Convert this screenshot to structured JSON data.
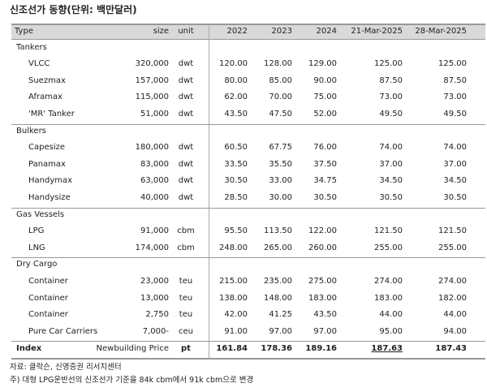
{
  "title": "신조선가 동향(단위: 백만달러)",
  "table": {
    "header": [
      "Type",
      "size",
      "unit",
      "2022",
      "2023",
      "2024",
      "21-Mar-2025",
      "28-Mar-2025"
    ],
    "groups": [
      {
        "name": "Tankers",
        "rows": [
          [
            "VLCC",
            "320,000",
            "dwt",
            "120.00",
            "128.00",
            "129.00",
            "125.00",
            "125.00"
          ],
          [
            "Suezmax",
            "157,000",
            "dwt",
            "80.00",
            "85.00",
            "90.00",
            "87.50",
            "87.50"
          ],
          [
            "Aframax",
            "115,000",
            "dwt",
            "62.00",
            "70.00",
            "75.00",
            "73.00",
            "73.00"
          ],
          [
            "'MR' Tanker",
            "51,000",
            "dwt",
            "43.50",
            "47.50",
            "52.00",
            "49.50",
            "49.50"
          ]
        ]
      },
      {
        "name": "Bulkers",
        "rows": [
          [
            "Capesize",
            "180,000",
            "dwt",
            "60.50",
            "67.75",
            "76.00",
            "74.00",
            "74.00"
          ],
          [
            "Panamax",
            "83,000",
            "dwt",
            "33.50",
            "35.50",
            "37.50",
            "37.00",
            "37.00"
          ],
          [
            "Handymax",
            "63,000",
            "dwt",
            "30.50",
            "33.00",
            "34.75",
            "34.50",
            "34.50"
          ],
          [
            "Handysize",
            "40,000",
            "dwt",
            "28.50",
            "30.00",
            "30.50",
            "30.50",
            "30.50"
          ]
        ]
      },
      {
        "name": "Gas Vessels",
        "rows": [
          [
            "LPG",
            "91,000",
            "cbm",
            "95.50",
            "113.50",
            "122.00",
            "121.50",
            "121.50"
          ],
          [
            "LNG",
            "174,000",
            "cbm",
            "248.00",
            "265.00",
            "260.00",
            "255.00",
            "255.00"
          ]
        ]
      },
      {
        "name": "Dry Cargo",
        "rows": [
          [
            "Container",
            "23,000",
            "teu",
            "215.00",
            "235.00",
            "275.00",
            "274.00",
            "274.00"
          ],
          [
            "Container",
            "13,000",
            "teu",
            "138.00",
            "148.00",
            "183.00",
            "183.00",
            "182.00"
          ],
          [
            "Container",
            "2,750",
            "teu",
            "42.00",
            "41.25",
            "43.50",
            "44.00",
            "44.00"
          ],
          [
            "Pure Car Carriers",
            "7,000-",
            "ceu",
            "91.00",
            "97.00",
            "97.00",
            "95.00",
            "94.00"
          ]
        ]
      }
    ],
    "index": [
      "Index",
      "Newbuilding Price",
      "pt",
      "161.84",
      "178.36",
      "189.16",
      "187.63",
      "187.43"
    ]
  },
  "notes": [
    "자료: 클락슨, 신영증권 리서치센터",
    "주) 대형 LPG운반선의 신조선가 기준을 84k cbm에서 91k cbm으로 변경"
  ]
}
